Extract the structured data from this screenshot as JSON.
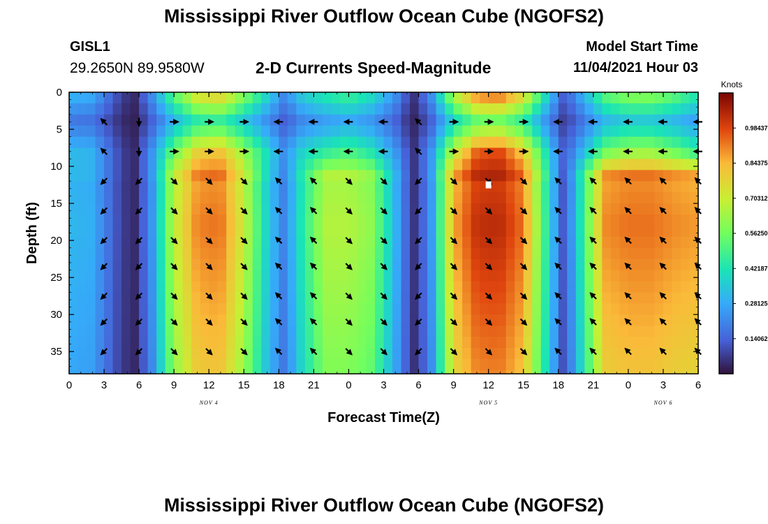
{
  "header": {
    "title": "Mississippi River Outflow Ocean Cube (NGOFS2)",
    "station_id": "GISL1",
    "coordinates": "29.2650N  89.9580W",
    "subtitle": "2-D Currents Speed-Magnitude",
    "model_start_label": "Model Start Time",
    "model_start_value": "11/04/2021 Hour 03"
  },
  "footer": {
    "title": "Mississippi River Outflow Ocean Cube (NGOFS2)"
  },
  "chart_data": {
    "type": "heatmap",
    "title": "2-D Currents Speed-Magnitude",
    "xlabel": "Forecast Time(Z)",
    "ylabel": "Depth (ft)",
    "x_ticks": [
      "0",
      "3",
      "6",
      "9",
      "12",
      "15",
      "18",
      "21",
      "0",
      "3",
      "6",
      "9",
      "12",
      "15",
      "18",
      "21",
      "0",
      "3",
      "6"
    ],
    "x_hours": [
      0,
      3,
      6,
      9,
      12,
      15,
      18,
      21,
      24,
      27,
      30,
      33,
      36,
      39,
      42,
      45,
      48,
      51,
      54
    ],
    "date_labels": [
      {
        "text": "NOV 4",
        "hour": 12
      },
      {
        "text": "NOV 5",
        "hour": 36
      },
      {
        "text": "NOV 6",
        "hour": 51
      }
    ],
    "y_ticks": [
      "0",
      "5",
      "10",
      "15",
      "20",
      "25",
      "30",
      "35"
    ],
    "y_values": [
      0,
      5,
      10,
      15,
      20,
      25,
      30,
      35
    ],
    "xlim": [
      0,
      54
    ],
    "ylim": [
      0,
      38
    ],
    "y_inverted": true,
    "colorbar": {
      "units": "Knots",
      "ticks": [
        "0.14062",
        "0.28125",
        "0.42187",
        "0.56250",
        "0.70312",
        "0.84375",
        "0.98437"
      ],
      "tick_values": [
        0.14062,
        0.28125,
        0.42187,
        0.5625,
        0.70312,
        0.84375,
        0.98437
      ],
      "range": [
        0,
        1.125
      ],
      "colormap": "turbo"
    },
    "speed_profile_surface": [
      [
        0,
        0.32
      ],
      [
        2,
        0.3
      ],
      [
        4,
        0.12
      ],
      [
        5.5,
        0.03
      ],
      [
        7,
        0.22
      ],
      [
        9,
        0.55
      ],
      [
        11,
        0.78
      ],
      [
        13,
        0.82
      ],
      [
        15,
        0.62
      ],
      [
        17,
        0.4
      ],
      [
        18.5,
        0.22
      ],
      [
        20,
        0.38
      ],
      [
        22,
        0.45
      ],
      [
        24,
        0.5
      ],
      [
        26,
        0.42
      ],
      [
        28,
        0.25
      ],
      [
        29.5,
        0.05
      ],
      [
        31,
        0.22
      ],
      [
        33,
        0.68
      ],
      [
        35,
        0.95
      ],
      [
        37,
        0.98
      ],
      [
        39,
        0.8
      ],
      [
        41,
        0.4
      ],
      [
        42.5,
        0.12
      ],
      [
        44,
        0.3
      ],
      [
        46,
        0.55
      ],
      [
        48,
        0.62
      ],
      [
        50,
        0.62
      ],
      [
        52,
        0.55
      ],
      [
        54,
        0.45
      ]
    ],
    "speed_profile_deep": [
      [
        0,
        0.32
      ],
      [
        2,
        0.3
      ],
      [
        4,
        0.12
      ],
      [
        5.5,
        0.03
      ],
      [
        7,
        0.22
      ],
      [
        9,
        0.7
      ],
      [
        11,
        0.93
      ],
      [
        13,
        0.95
      ],
      [
        15,
        0.72
      ],
      [
        17,
        0.38
      ],
      [
        18.5,
        0.2
      ],
      [
        20,
        0.45
      ],
      [
        22,
        0.68
      ],
      [
        24,
        0.68
      ],
      [
        26,
        0.62
      ],
      [
        28,
        0.32
      ],
      [
        29.5,
        0.05
      ],
      [
        31,
        0.22
      ],
      [
        33,
        0.88
      ],
      [
        35,
        1.05
      ],
      [
        37,
        1.06
      ],
      [
        39,
        0.95
      ],
      [
        41,
        0.45
      ],
      [
        42.5,
        0.1
      ],
      [
        44,
        0.45
      ],
      [
        46,
        0.92
      ],
      [
        48,
        0.95
      ],
      [
        50,
        0.95
      ],
      [
        52,
        0.92
      ],
      [
        54,
        0.9
      ]
    ],
    "vectors": {
      "hours": [
        3,
        6,
        9,
        12,
        15,
        18,
        21,
        24,
        27,
        30,
        33,
        36,
        39,
        42,
        45,
        48,
        51,
        54
      ],
      "depths": [
        4,
        8,
        12,
        16,
        20,
        23.5,
        27.5,
        31,
        35
      ],
      "surface_angles_deg": [
        225,
        90,
        0,
        0,
        0,
        180,
        180,
        180,
        180,
        225,
        0,
        0,
        0,
        180,
        180,
        180,
        180,
        180
      ],
      "deep_angles_deg": [
        135,
        135,
        45,
        45,
        45,
        225,
        225,
        45,
        45,
        135,
        45,
        45,
        45,
        225,
        225,
        225,
        225,
        225
      ]
    },
    "marker": {
      "hour": 36,
      "depth": 12.5
    }
  }
}
